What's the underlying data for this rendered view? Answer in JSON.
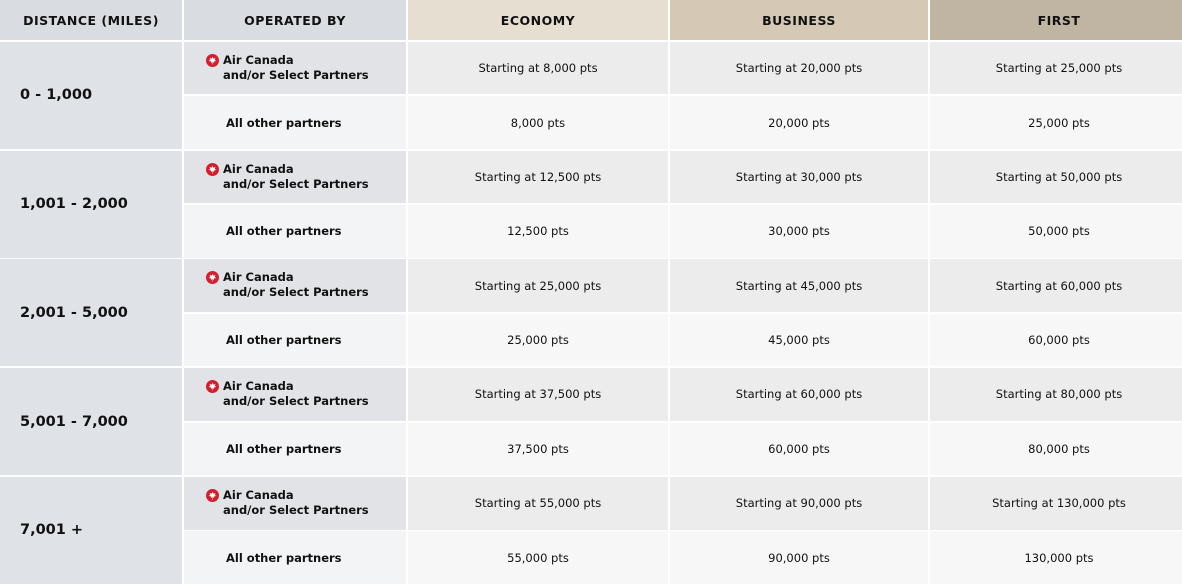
{
  "headers": {
    "distance": "DISTANCE (MILES)",
    "operated_by": "OPERATED BY",
    "economy": "ECONOMY",
    "business": "BUSINESS",
    "first": "FIRST"
  },
  "operator_labels": {
    "ac_line1": "Air Canada",
    "ac_line2": "and/or Select Partners",
    "other": "All other partners"
  },
  "colors": {
    "air_canada_red": "#d11f2e",
    "economy_header": "#e6ded0",
    "business_header": "#d5c9b6",
    "first_header": "#c0b4a2"
  },
  "icon": "air-canada-maple-leaf-icon",
  "rows": [
    {
      "distance": "0 - 1,000",
      "ac": {
        "economy": "Starting at 8,000 pts",
        "business": "Starting at 20,000 pts",
        "first": "Starting at 25,000 pts"
      },
      "other": {
        "economy": "8,000 pts",
        "business": "20,000 pts",
        "first": "25,000 pts"
      }
    },
    {
      "distance": "1,001 - 2,000",
      "ac": {
        "economy": "Starting at 12,500 pts",
        "business": "Starting at 30,000 pts",
        "first": "Starting at 50,000 pts"
      },
      "other": {
        "economy": "12,500 pts",
        "business": "30,000 pts",
        "first": "50,000 pts"
      }
    },
    {
      "distance": "2,001 - 5,000",
      "ac": {
        "economy": "Starting at 25,000 pts",
        "business": "Starting at 45,000 pts",
        "first": "Starting at 60,000 pts"
      },
      "other": {
        "economy": "25,000 pts",
        "business": "45,000 pts",
        "first": "60,000 pts"
      }
    },
    {
      "distance": "5,001 - 7,000",
      "ac": {
        "economy": "Starting at 37,500 pts",
        "business": "Starting at 60,000 pts",
        "first": "Starting at 80,000 pts"
      },
      "other": {
        "economy": "37,500 pts",
        "business": "60,000 pts",
        "first": "80,000 pts"
      }
    },
    {
      "distance": "7,001 +",
      "ac": {
        "economy": "Starting at 55,000 pts",
        "business": "Starting at 90,000 pts",
        "first": "Starting at 130,000 pts"
      },
      "other": {
        "economy": "55,000 pts",
        "business": "90,000 pts",
        "first": "130,000 pts"
      }
    }
  ]
}
